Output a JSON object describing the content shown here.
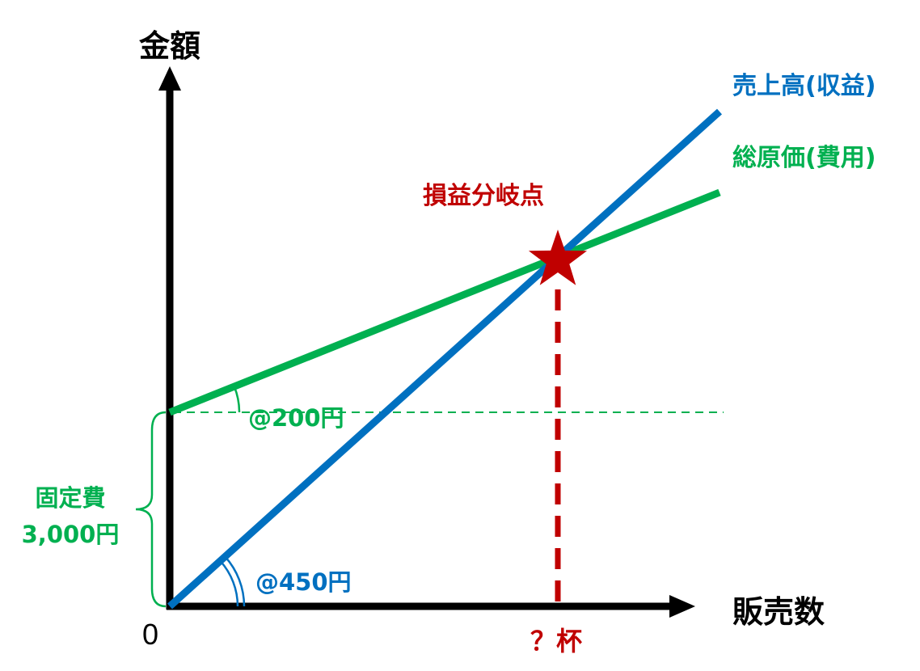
{
  "chart_data": {
    "type": "line",
    "xlabel": "販売数",
    "ylabel": "金額",
    "origin_label": "0",
    "series": [
      {
        "name": "売上高(収益)",
        "color": "#0070c0",
        "intercept": 0,
        "slope": 450,
        "slope_label": "@450円"
      },
      {
        "name": "総原価(費用)",
        "color": "#00b050",
        "intercept": 3000,
        "slope": 200,
        "slope_label": "@200円"
      }
    ],
    "fixed_cost": {
      "label_line1": "固定費",
      "label_line2": "3,000円",
      "value": 3000,
      "color": "#00b050"
    },
    "break_even": {
      "label": "損益分岐点",
      "x": 12,
      "y": 5400,
      "x_label": "？杯",
      "color": "#c00000"
    },
    "xlim": [
      0,
      17
    ],
    "ylim": [
      0,
      8100
    ],
    "axis_color": "#000000",
    "grid": false
  }
}
